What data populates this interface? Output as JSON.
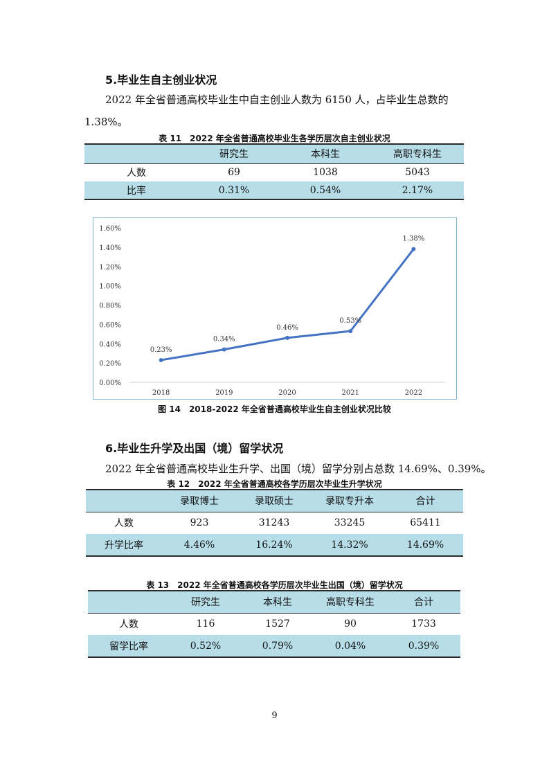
{
  "section5": {
    "heading": "5.毕业生自主创业状况",
    "para_line1": "2022 年全省普通高校毕业生中自主创业人数为 6150 人，占毕业生总数的",
    "para_line2": "1.38%。"
  },
  "table11": {
    "caption": "表 11　2022 年全省普通高校毕业生各学历层次自主创业状况",
    "headers": [
      "",
      "研究生",
      "本科生",
      "高职专科生"
    ],
    "rows": [
      [
        "人数",
        "69",
        "1038",
        "5043"
      ],
      [
        "比率",
        "0.31%",
        "0.54%",
        "2.17%"
      ]
    ]
  },
  "chart_data": {
    "type": "line",
    "x": [
      "2018",
      "2019",
      "2020",
      "2021",
      "2022"
    ],
    "series": [
      {
        "values": [
          0.23,
          0.34,
          0.46,
          0.53,
          1.38
        ]
      }
    ],
    "data_labels": [
      "0.23%",
      "0.34%",
      "0.46%",
      "0.53%",
      "1.38%"
    ],
    "y_ticks": [
      "0.00%",
      "0.20%",
      "0.40%",
      "0.60%",
      "0.80%",
      "1.00%",
      "1.20%",
      "1.40%",
      "1.60%"
    ],
    "ylim": [
      0,
      1.6
    ],
    "y_unit": "%",
    "grid": false,
    "line_color": "#4472c4"
  },
  "figure14": {
    "caption": "图 14　2018-2022 年全省普通高校毕业生自主创业状况比较"
  },
  "section6": {
    "heading": "6.毕业生升学及出国（境）留学状况",
    "para": "2022 年全省普通高校毕业生升学、出国（境）留学分别占总数 14.69%、0.39%。"
  },
  "table12": {
    "caption": "表 12　2022 年全省普通高校各学历层次毕业生升学状况",
    "headers": [
      "",
      "录取博士",
      "录取硕士",
      "录取专升本",
      "合计"
    ],
    "rows": [
      [
        "人数",
        "923",
        "31243",
        "33245",
        "65411"
      ],
      [
        "升学比率",
        "4.46%",
        "16.24%",
        "14.32%",
        "14.69%"
      ]
    ]
  },
  "table13": {
    "caption": "表 13　2022 年全省普通高校各学历层次毕业生出国（境）留学状况",
    "headers": [
      "",
      "研究生",
      "本科生",
      "高职专科生",
      "合计"
    ],
    "rows": [
      [
        "人数",
        "116",
        "1527",
        "90",
        "1733"
      ],
      [
        "留学比率",
        "0.52%",
        "0.79%",
        "0.04%",
        "0.39%"
      ]
    ]
  },
  "footer": {
    "page_number": "9"
  }
}
